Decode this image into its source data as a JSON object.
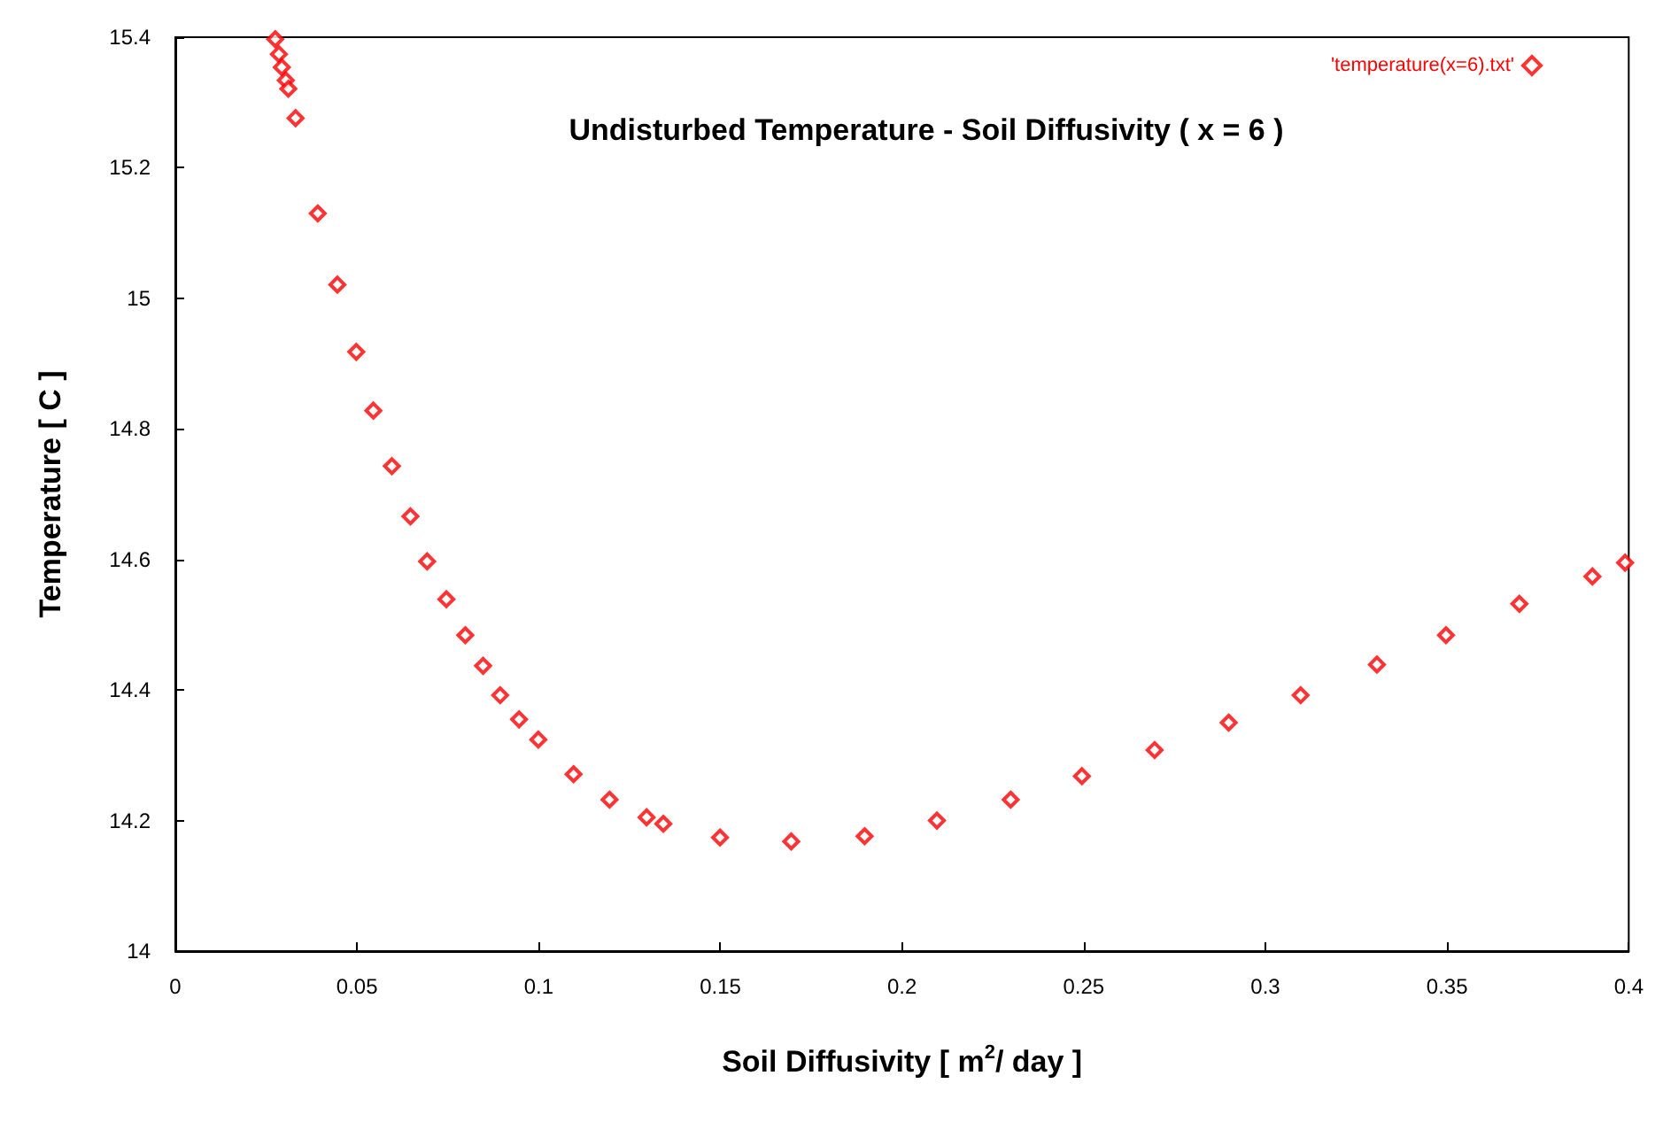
{
  "chart_data": {
    "type": "scatter",
    "title": "Undisturbed Temperature - Soil Diffusivity ( x = 6 )",
    "xlabel": "Soil Diffusivity [ m$^{2}$/ day ]",
    "ylabel": "Temperature [ C ]",
    "series": [
      {
        "name": "'temperature(x=6).txt'",
        "color": "#ff0000",
        "x": [
          0.0275,
          0.0285,
          0.0293,
          0.0304,
          0.0311,
          0.0331,
          0.0392,
          0.0446,
          0.0498,
          0.0545,
          0.0596,
          0.0647,
          0.0693,
          0.0746,
          0.0798,
          0.0847,
          0.0894,
          0.0946,
          0.0999,
          0.1096,
          0.1195,
          0.1297,
          0.1343,
          0.1499,
          0.1695,
          0.1897,
          0.2096,
          0.2299,
          0.2495,
          0.2695,
          0.2899,
          0.3097,
          0.3307,
          0.3497,
          0.3699,
          0.39,
          0.399
        ],
        "values": [
          15.397,
          15.374,
          15.354,
          15.334,
          15.321,
          15.276,
          15.13,
          15.021,
          14.918,
          14.828,
          14.743,
          14.666,
          14.597,
          14.539,
          14.484,
          14.437,
          14.392,
          14.355,
          14.324,
          14.271,
          14.232,
          14.205,
          14.195,
          14.174,
          14.168,
          14.176,
          14.2,
          14.232,
          14.268,
          14.308,
          14.35,
          14.392,
          14.439,
          14.484,
          14.532,
          14.574,
          14.595
        ]
      }
    ],
    "xlim": [
      0,
      0.4
    ],
    "xticks": [
      0,
      0.05,
      0.1,
      0.15,
      0.2,
      0.25,
      0.3,
      0.35,
      0.4
    ],
    "ylim": [
      14,
      15.4
    ],
    "yticks": [
      14,
      14.2,
      14.4,
      14.6,
      14.8,
      15,
      15.2,
      15.4
    ],
    "grid": false,
    "legend": "top right",
    "marker": "diamond"
  }
}
